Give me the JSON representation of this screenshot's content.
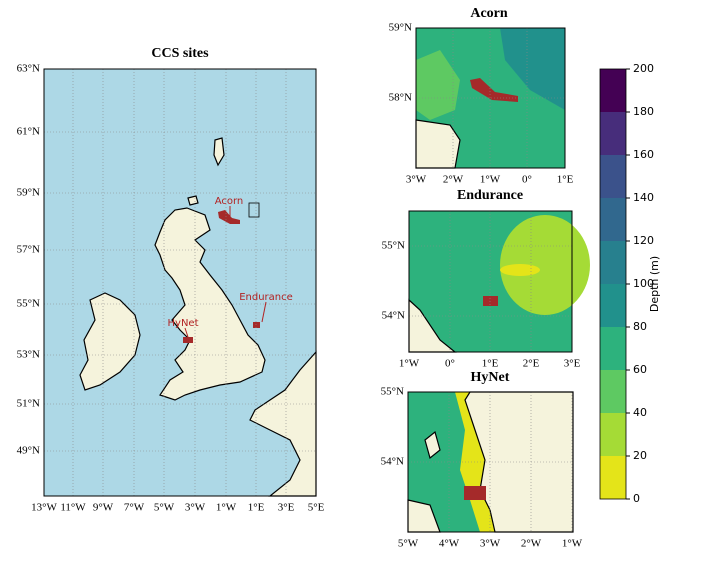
{
  "maps": [
    {
      "title": "CCS sites",
      "lat_labels": [
        "63°N",
        "61°N",
        "59°N",
        "57°N",
        "55°N",
        "53°N",
        "51°N",
        "49°N"
      ],
      "lon_labels": [
        "13°W",
        "11°W",
        "9°W",
        "7°W",
        "5°W",
        "3°W",
        "1°W",
        "1°E",
        "3°E",
        "5°E"
      ],
      "annotations": [
        "Acorn",
        "Endurance",
        "HyNet"
      ]
    },
    {
      "title": "Acorn",
      "lat_labels": [
        "59°N",
        "58°N"
      ],
      "lon_labels": [
        "3°W",
        "2°W",
        "1°W",
        "0°",
        "1°E"
      ]
    },
    {
      "title": "Endurance",
      "lat_labels": [
        "55°N",
        "54°N"
      ],
      "lon_labels": [
        "1°W",
        "0°",
        "1°E",
        "2°E",
        "3°E"
      ]
    },
    {
      "title": "HyNet",
      "lat_labels": [
        "55°N",
        "54°N"
      ],
      "lon_labels": [
        "5°W",
        "4°W",
        "3°W",
        "2°W",
        "1°W"
      ]
    }
  ],
  "colorbar": {
    "label": "Depth (m)",
    "ticks": [
      0,
      20,
      40,
      60,
      80,
      100,
      120,
      140,
      160,
      180,
      200
    ],
    "colors": [
      "#e4e419",
      "#a5db36",
      "#5ec962",
      "#2db27d",
      "#21918c",
      "#27808e",
      "#31688e",
      "#3b528b",
      "#472d7b",
      "#440154"
    ]
  }
}
